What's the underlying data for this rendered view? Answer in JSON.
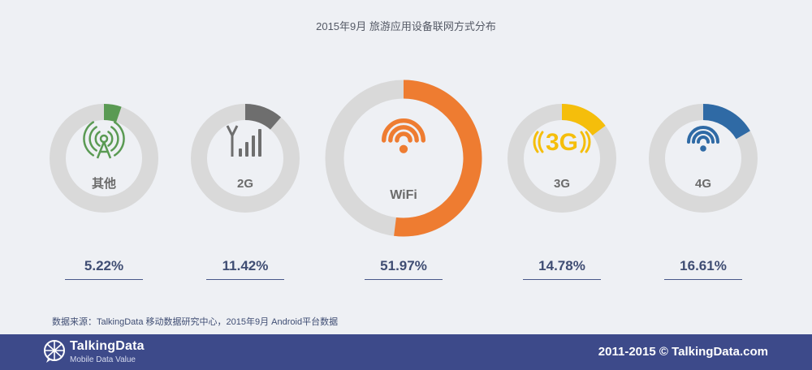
{
  "title": "2015年9月 旅游应用设备联网方式分布",
  "chart_data": {
    "type": "donut",
    "title": "2015年9月 旅游应用设备联网方式分布",
    "unit": "%",
    "items": [
      {
        "label": "其他",
        "value": 5.22,
        "display": "5.22%",
        "color": "#5a9a53",
        "icon": "antenna-broadcast-icon"
      },
      {
        "label": "2G",
        "value": 11.42,
        "display": "11.42%",
        "color": "#6e6e6e",
        "icon": "signal-bars-icon"
      },
      {
        "label": "WiFi",
        "value": 51.97,
        "display": "51.97%",
        "color": "#ee7c31",
        "icon": "wifi-icon"
      },
      {
        "label": "3G",
        "value": 14.78,
        "display": "14.78%",
        "color": "#f5be0b",
        "icon": "3g-icon"
      },
      {
        "label": "4G",
        "value": 16.61,
        "display": "16.61%",
        "color": "#2f6aa5",
        "icon": "4g-wifi-icon"
      }
    ],
    "track_color": "#d9d9d9",
    "label_color": "#6b6b6b"
  },
  "source": "数据来源：TalkingData 移动数据研究中心，2015年9月 Android平台数据",
  "footer": {
    "brand": "TalkingData",
    "tagline": "Mobile Data Value",
    "copyright": "2011-2015 © TalkingData.com",
    "background": "#3d4a8a"
  }
}
